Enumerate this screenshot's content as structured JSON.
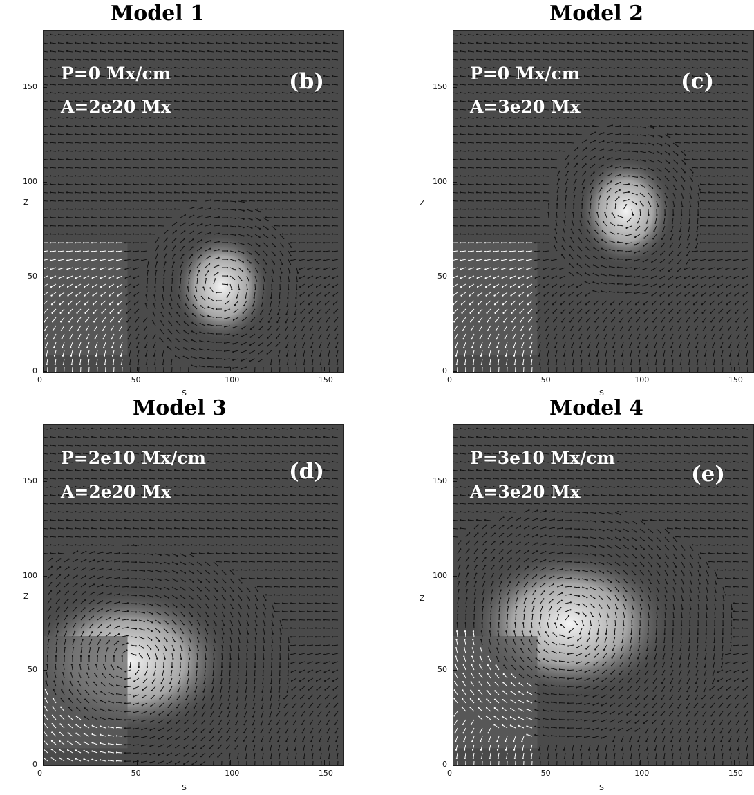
{
  "figure": {
    "panels": [
      {
        "id": "b",
        "title": "Model 1",
        "label": "(b)",
        "line1": "P=0 Mx/cm",
        "line2": "A=2e20 Mx",
        "xlabel": "S",
        "ylabel": "Z",
        "xticks": [
          "0",
          "50",
          "100",
          "150"
        ],
        "yticks": [
          "0",
          "50",
          "100",
          "150"
        ],
        "vortex": {
          "s": 95,
          "z": 45,
          "type": "upflow"
        }
      },
      {
        "id": "c",
        "title": "Model 2",
        "label": "(c)",
        "line1": "P=0 Mx/cm",
        "line2": "A=3e20 Mx",
        "xlabel": "S",
        "ylabel": "Z",
        "xticks": [
          "0",
          "50",
          "100",
          "150"
        ],
        "yticks": [
          "0",
          "50",
          "100",
          "150"
        ],
        "vortex": {
          "s": 92,
          "z": 85,
          "type": "rope"
        }
      },
      {
        "id": "d",
        "title": "Model  3",
        "label": "(d)",
        "line1": "P=2e10 Mx/cm",
        "line2": "A=2e20 Mx",
        "xlabel": "S",
        "ylabel": "Z",
        "xticks": [
          "0",
          "50",
          "100",
          "150"
        ],
        "yticks": [
          "0",
          "50",
          "100",
          "150"
        ],
        "vortex": {
          "s": 45,
          "z": 55,
          "type": "rope"
        }
      },
      {
        "id": "e",
        "title": "Model 4",
        "label": "(e)",
        "line1": "P=3e10 Mx/cm",
        "line2": "A=3e20 Mx",
        "xlabel": "S",
        "ylabel": "Z",
        "xticks": [
          "0",
          "50",
          "100",
          "150"
        ],
        "yticks": [
          "0",
          "50",
          "100",
          "150"
        ],
        "vortex": {
          "s": 62,
          "z": 75,
          "type": "rope"
        }
      }
    ],
    "axes": {
      "s_range": [
        0,
        160
      ],
      "z_range": [
        0,
        180
      ]
    },
    "colors": {
      "background_field": "#4a4a4a",
      "bright_region": "#f4f4f4",
      "arrow_dark": "#111111",
      "arrow_light": "#ffffff",
      "annotation": "#ffffff"
    }
  }
}
